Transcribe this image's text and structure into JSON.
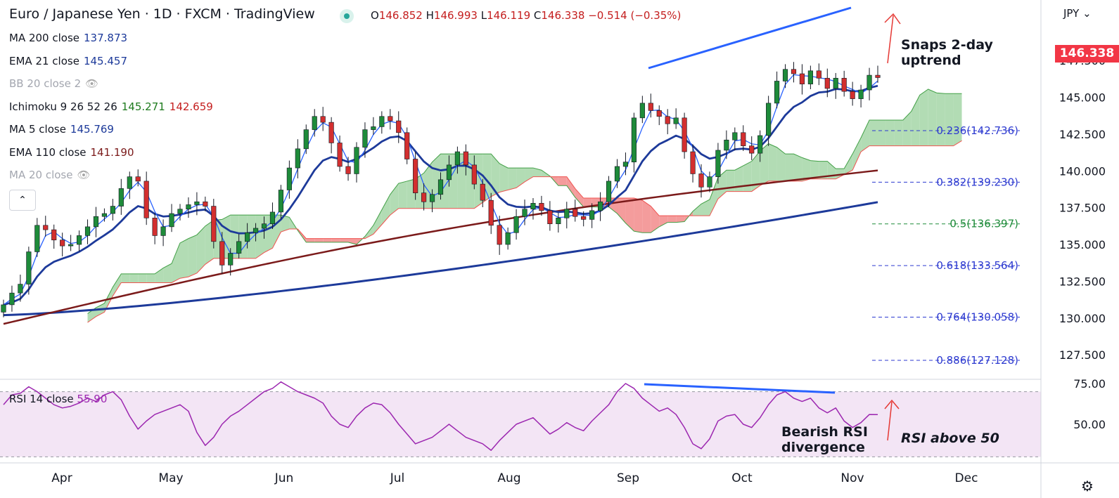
{
  "header": {
    "title": "Euro / Japanese Yen · 1D · FXCM · TradingView",
    "ohlc": {
      "o_label": "O",
      "o": "146.852",
      "h_label": "H",
      "h": "146.993",
      "l_label": "L",
      "l": "146.119",
      "c_label": "C",
      "c": "146.338",
      "change": "−0.514 (−0.35%)"
    }
  },
  "indicators": [
    {
      "label": "MA 200 close",
      "values": [
        "137.873"
      ],
      "colors": [
        "#1d3a9a"
      ],
      "visible": true
    },
    {
      "label": "EMA 21 close",
      "values": [
        "145.457"
      ],
      "colors": [
        "#1d3a9a"
      ],
      "visible": true
    },
    {
      "label": "BB 20 close 2",
      "values": [],
      "colors": [],
      "visible": false
    },
    {
      "label": "Ichimoku 9 26 52 26",
      "values": [
        "145.271",
        "142.659"
      ],
      "colors": [
        "#1e7b1e",
        "#c41e1e"
      ],
      "visible": true
    },
    {
      "label": "MA 5 close",
      "values": [
        "145.769"
      ],
      "colors": [
        "#1d3a9a"
      ],
      "visible": true
    },
    {
      "label": "EMA 110 close",
      "values": [
        "141.190"
      ],
      "colors": [
        "#7b1a1a"
      ],
      "visible": true
    },
    {
      "label": "MA 20 close",
      "values": [],
      "colors": [],
      "visible": false
    }
  ],
  "currency": "JPY",
  "last_price": "146.338",
  "colors": {
    "up": "#1e8b3a",
    "down": "#d32f2f",
    "ma200": "#1d3a9a",
    "ema21": "#1d3a9a",
    "ma5": "#2962ff",
    "ema110": "#7b1a1a",
    "kumo_bull": "#a5d6a7",
    "kumo_bear": "#f28b8b",
    "fib": "#2d3ad0",
    "fib05": "#1e8b3a",
    "rsi": "#9c27b0",
    "rsi_band": "#f3e5f5",
    "annot_line": "#2962ff",
    "annot_arrow": "#e53935",
    "price_tag": "#f23645"
  },
  "annotations": {
    "snap": "Snaps 2-day\nuptrend",
    "bearish": "Bearish RSI\ndivergence",
    "rsi_above": "RSI above 50"
  },
  "rsi": {
    "label": "RSI 14 close",
    "value": "55.90"
  },
  "chart_data": {
    "type": "candlestick",
    "ylim": [
      126.6,
      150.8
    ],
    "y_ticks": [
      "127.500",
      "130.000",
      "132.500",
      "135.000",
      "137.500",
      "140.000",
      "142.500",
      "145.000",
      "147.500"
    ],
    "x_ticks": [
      "Apr",
      "May",
      "Jun",
      "Jul",
      "Aug",
      "Sep",
      "Oct",
      "Nov",
      "Dec"
    ],
    "fib_levels": [
      {
        "label": "0.236(142.736)",
        "value": 142.736
      },
      {
        "label": "0.382(139.230)",
        "value": 139.23
      },
      {
        "label": "0.5(136.397)",
        "value": 136.397
      },
      {
        "label": "0.618(133.564)",
        "value": 133.564
      },
      {
        "label": "0.764(130.058)",
        "value": 130.058
      },
      {
        "label": "0.886(127.128)",
        "value": 127.128
      }
    ],
    "series": [
      {
        "name": "Price",
        "values": [
          130.9,
          131.7,
          132.3,
          134.5,
          136.3,
          136.0,
          135.3,
          134.9,
          135.0,
          135.6,
          136.2,
          136.9,
          137.1,
          137.6,
          138.8,
          139.6,
          139.3,
          136.8,
          135.6,
          136.2,
          137.1,
          137.4,
          137.7,
          137.9,
          137.6,
          135.2,
          133.6,
          134.4,
          135.2,
          135.8,
          136.1,
          136.4,
          137.2,
          138.7,
          140.2,
          141.5,
          142.8,
          143.7,
          143.3,
          141.9,
          140.3,
          139.8,
          141.6,
          142.8,
          143.0,
          143.7,
          143.4,
          142.6,
          140.8,
          138.5,
          137.9,
          138.4,
          139.4,
          140.4,
          141.3,
          140.4,
          139.1,
          138.0,
          136.3,
          135.0,
          135.8,
          136.9,
          137.4,
          137.8,
          137.3,
          136.4,
          136.8,
          137.4,
          136.9,
          136.7,
          137.3,
          137.9,
          139.3,
          140.3,
          140.6,
          143.6,
          144.6,
          144.1,
          143.7,
          143.2,
          143.6,
          141.3,
          139.8,
          138.9,
          139.6,
          141.4,
          142.1,
          142.6,
          141.7,
          141.2,
          142.4,
          144.6,
          146.1,
          146.9,
          146.6,
          145.9,
          146.8,
          146.3,
          145.6,
          146.3,
          145.4,
          144.9,
          145.5,
          146.5,
          146.338
        ]
      },
      {
        "name": "RSI",
        "values": [
          62,
          68,
          69,
          73,
          70,
          66,
          62,
          60,
          61,
          63,
          66,
          64,
          68,
          70,
          65,
          55,
          47,
          52,
          56,
          58,
          60,
          62,
          58,
          45,
          37,
          42,
          50,
          55,
          58,
          62,
          66,
          70,
          72,
          76,
          73,
          70,
          68,
          66,
          63,
          55,
          50,
          48,
          55,
          60,
          63,
          62,
          57,
          50,
          44,
          38,
          40,
          42,
          46,
          50,
          46,
          42,
          40,
          38,
          34,
          40,
          45,
          50,
          52,
          54,
          49,
          44,
          47,
          51,
          48,
          46,
          52,
          57,
          62,
          70,
          75,
          72,
          66,
          62,
          58,
          60,
          56,
          48,
          38,
          35,
          41,
          52,
          55,
          56,
          50,
          48,
          54,
          62,
          68,
          70,
          66,
          64,
          66,
          60,
          57,
          60,
          52,
          48,
          51,
          56,
          55.9
        ]
      }
    ]
  }
}
